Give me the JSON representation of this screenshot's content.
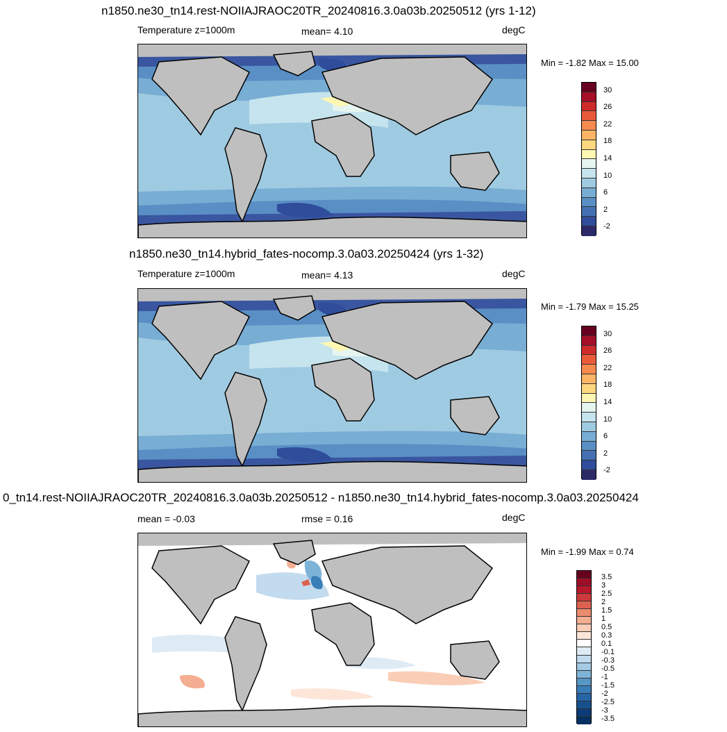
{
  "panels": [
    {
      "title": "n1850.ne30_tn14.rest-NOIIAJRAOC20TR_20240816.3.0a03b.20250512 (yrs 1-12)",
      "left_label": "Temperature z=1000m",
      "center_label": "mean=   4.10",
      "units": "degC",
      "minmax": "Min =  -1.82 Max =  15.00",
      "colorbar": {
        "colors": [
          "#67001f",
          "#a50f28",
          "#cf2b2b",
          "#ea5b39",
          "#f68a4f",
          "#fdb565",
          "#fed87f",
          "#fef7b4",
          "#e6f5ef",
          "#c6e4ee",
          "#9fcbe2",
          "#78add4",
          "#5a8fc5",
          "#4470b3",
          "#2f4d9a",
          "#2b2a68"
        ],
        "labels": [
          "30",
          "26",
          "22",
          "18",
          "14",
          "10",
          "6",
          "2",
          "-2"
        ]
      }
    },
    {
      "title": "n1850.ne30_tn14.hybrid_fates-nocomp.3.0a03.20250424 (yrs 1-32)",
      "left_label": "Temperature z=1000m",
      "center_label": "mean=   4.13",
      "units": "degC",
      "minmax": "Min =  -1.79 Max =  15.25",
      "colorbar": {
        "colors": [
          "#67001f",
          "#a50f28",
          "#cf2b2b",
          "#ea5b39",
          "#f68a4f",
          "#fdb565",
          "#fed87f",
          "#fef7b4",
          "#e6f5ef",
          "#c6e4ee",
          "#9fcbe2",
          "#78add4",
          "#5a8fc5",
          "#4470b3",
          "#2f4d9a",
          "#2b2a68"
        ],
        "labels": [
          "30",
          "26",
          "22",
          "18",
          "14",
          "10",
          "6",
          "2",
          "-2"
        ]
      }
    },
    {
      "title": "0_tn14.rest-NOIIAJRAOC20TR_20240816.3.0a03b.20250512 - n1850.ne30_tn14.hybrid_fates-nocomp.3.0a03.20250424",
      "left_label": "mean =  -0.03",
      "center_label": "rmse =   0.16",
      "units": "degC",
      "minmax": "Min =  -1.99 Max =   0.74",
      "colorbar": {
        "colors": [
          "#67001f",
          "#9e0d27",
          "#b8182c",
          "#cc3b3b",
          "#dc6250",
          "#eb8b6e",
          "#f4ae92",
          "#f9cdb6",
          "#fde5d8",
          "#ffffff",
          "#deebf5",
          "#c3dbee",
          "#a3c9e4",
          "#7eb3d8",
          "#5697c6",
          "#3a7eb8",
          "#2565a6",
          "#17508f",
          "#0b3d78",
          "#053061"
        ],
        "labels": [
          "3.5",
          "3",
          "2.5",
          "2",
          "1.5",
          "1",
          "0.5",
          "0.3",
          "0.1",
          "-0.1",
          "-0.3",
          "-0.5",
          "-1",
          "-1.5",
          "-2",
          "-2.5",
          "-3",
          "-3.5"
        ]
      }
    }
  ]
}
